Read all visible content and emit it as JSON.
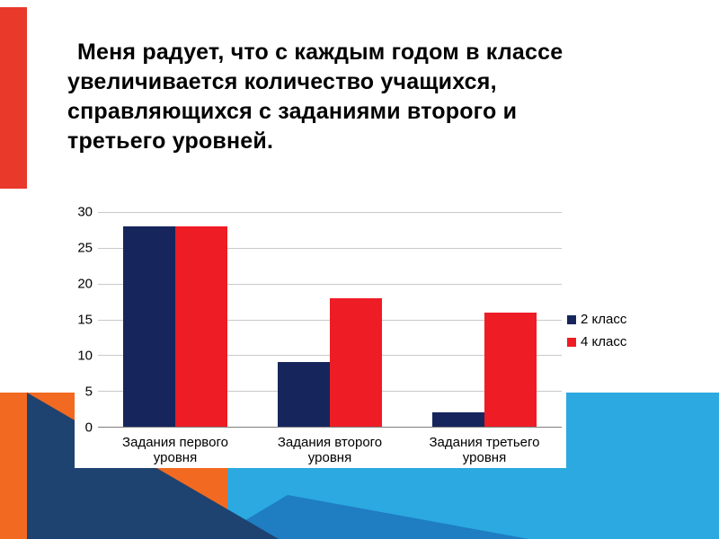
{
  "slide": {
    "title": "Меня радует, что с каждым годом в классе\nувеличивается количество учащихся,\nсправляющихся с заданиями второго и\nтретьего уровней."
  },
  "colors": {
    "accent_red_bar": "#E8392B",
    "orange_block": "#F26A21",
    "cyan_band": "#2BA9E0",
    "navy_triangle": "#1E4370",
    "medium_blue_triangle": "#1F7DC2"
  },
  "chart_data": {
    "type": "bar",
    "categories": [
      "Задания первого\nуровня",
      "Задания второго\nуровня",
      "Задания третьего\nуровня"
    ],
    "series": [
      {
        "name": "2 класс",
        "color": "#16265C",
        "values": [
          28,
          9,
          2
        ]
      },
      {
        "name": "4 класс",
        "color": "#EE1C25",
        "values": [
          28,
          18,
          16
        ]
      }
    ],
    "ylim": [
      0,
      30
    ],
    "yticks": [
      0,
      5,
      10,
      15,
      20,
      25,
      30
    ],
    "grid": true,
    "legend_position": "right"
  }
}
